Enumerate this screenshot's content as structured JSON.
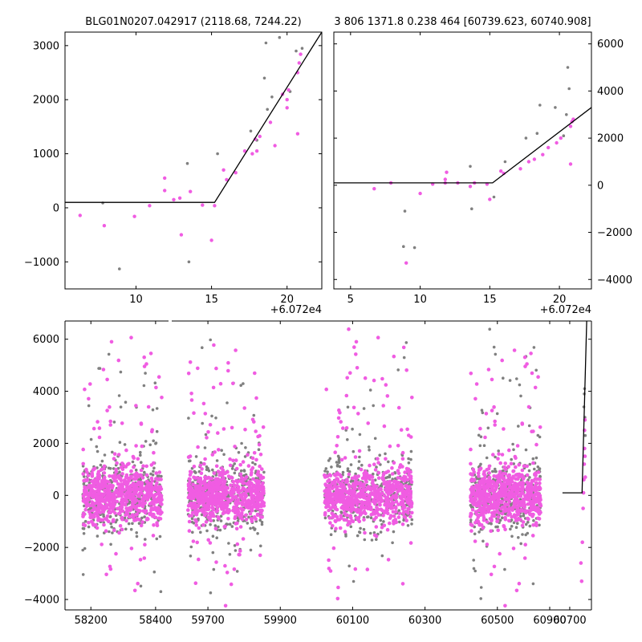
{
  "chart_data": [
    {
      "type": "scatter",
      "title": "BLG01N0207.042917 (2118.68, 7244.22)",
      "xlim": [
        5.3,
        22.3
      ],
      "ylim": [
        -1500,
        3250
      ],
      "x_offset_label": "+6.072e4",
      "x_ticks": [
        10,
        15,
        20
      ],
      "y_ticks": [
        -1000,
        0,
        1000,
        2000,
        3000
      ],
      "y_tick_side": "left",
      "colors": {
        "pink": "#f05ce2",
        "gray": "#808080",
        "line": "#000000"
      },
      "series": [
        {
          "color": "gray",
          "points": [
            [
              7.8,
              90
            ],
            [
              8.9,
              -1130
            ],
            [
              13.4,
              820
            ],
            [
              13.5,
              -1000
            ],
            [
              15.4,
              1000
            ],
            [
              17.6,
              1420
            ],
            [
              18.0,
              1250
            ],
            [
              18.5,
              2400
            ],
            [
              18.7,
              1820
            ],
            [
              19.0,
              2050
            ],
            [
              19.5,
              3150
            ],
            [
              20.2,
              2150
            ],
            [
              20.6,
              2900
            ],
            [
              21.0,
              2950
            ],
            [
              18.6,
              3050
            ]
          ]
        },
        {
          "color": "pink",
          "points": [
            [
              6.3,
              -140
            ],
            [
              7.9,
              -330
            ],
            [
              9.9,
              -160
            ],
            [
              10.9,
              40
            ],
            [
              11.9,
              320
            ],
            [
              11.9,
              550
            ],
            [
              12.5,
              150
            ],
            [
              12.9,
              180
            ],
            [
              13.0,
              -500
            ],
            [
              13.6,
              300
            ],
            [
              14.4,
              50
            ],
            [
              15.0,
              -600
            ],
            [
              15.2,
              40
            ],
            [
              15.8,
              700
            ],
            [
              16.0,
              520
            ],
            [
              17.2,
              1050
            ],
            [
              17.7,
              1000
            ],
            [
              18.0,
              1050
            ],
            [
              18.2,
              1320
            ],
            [
              18.9,
              1580
            ],
            [
              19.2,
              1150
            ],
            [
              19.7,
              2100
            ],
            [
              20.0,
              1850
            ],
            [
              20.0,
              2000
            ],
            [
              20.1,
              2180
            ],
            [
              20.7,
              1370
            ],
            [
              20.7,
              2500
            ],
            [
              20.8,
              2680
            ],
            [
              20.9,
              2840
            ],
            [
              16.6,
              650
            ],
            [
              17.9,
              1270
            ]
          ]
        },
        {
          "color": "line",
          "points": [
            [
              5.3,
              100
            ],
            [
              15.2,
              100
            ],
            [
              22.3,
              3250
            ]
          ]
        }
      ]
    },
    {
      "type": "scatter",
      "title": "3 806 1371.8 0.238 464 [60739.623, 60740.908]",
      "xlim": [
        3.8,
        22.3
      ],
      "ylim": [
        -4400,
        6500
      ],
      "x_offset_label": "+6.072e4",
      "x_ticks": [
        5,
        10,
        15,
        20
      ],
      "y_ticks": [
        -4000,
        -2000,
        0,
        2000,
        4000,
        6000
      ],
      "y_tick_side": "right",
      "colors": {
        "pink": "#f05ce2",
        "gray": "#808080",
        "line": "#000000"
      },
      "series": [
        {
          "color": "gray",
          "points": [
            [
              8.9,
              -1100
            ],
            [
              8.8,
              -2600
            ],
            [
              9.6,
              -2650
            ],
            [
              13.7,
              -1000
            ],
            [
              13.6,
              800
            ],
            [
              15.3,
              -500
            ],
            [
              16.1,
              1000
            ],
            [
              17.6,
              2000
            ],
            [
              18.4,
              2200
            ],
            [
              18.6,
              3400
            ],
            [
              19.7,
              3300
            ],
            [
              20.3,
              2100
            ],
            [
              20.5,
              3000
            ],
            [
              20.7,
              4100
            ],
            [
              20.6,
              5000
            ]
          ]
        },
        {
          "color": "pink",
          "points": [
            [
              6.7,
              -150
            ],
            [
              7.9,
              100
            ],
            [
              9.0,
              -3300
            ],
            [
              10.0,
              -350
            ],
            [
              10.9,
              50
            ],
            [
              11.8,
              100
            ],
            [
              11.8,
              250
            ],
            [
              11.9,
              550
            ],
            [
              12.7,
              100
            ],
            [
              13.6,
              -50
            ],
            [
              13.9,
              100
            ],
            [
              14.8,
              50
            ],
            [
              15.0,
              -600
            ],
            [
              15.8,
              600
            ],
            [
              16.0,
              500
            ],
            [
              17.2,
              700
            ],
            [
              17.8,
              1000
            ],
            [
              18.2,
              1100
            ],
            [
              18.8,
              1300
            ],
            [
              19.2,
              1600
            ],
            [
              19.8,
              1800
            ],
            [
              20.1,
              2000
            ],
            [
              20.8,
              900
            ],
            [
              20.8,
              2500
            ],
            [
              20.9,
              2700
            ],
            [
              21.0,
              2800
            ]
          ]
        },
        {
          "color": "line",
          "points": [
            [
              3.8,
              100
            ],
            [
              15.2,
              100
            ],
            [
              22.3,
              3300
            ]
          ]
        }
      ]
    },
    {
      "type": "scatter",
      "title": "",
      "segments": [
        {
          "xlim": [
            58120,
            58440
          ],
          "x_ticks": [
            58200,
            58400
          ]
        },
        {
          "xlim": [
            59600,
            60760
          ],
          "x_ticks": [
            59700,
            59900,
            60100,
            60300,
            60500,
            60700
          ]
        }
      ],
      "extra_x_tick": 60900,
      "ylim": [
        -4400,
        6700
      ],
      "y_ticks": [
        -4000,
        -2000,
        0,
        2000,
        4000,
        6000
      ],
      "y_tick_side": "left",
      "colors": {
        "pink": "#f05ce2",
        "gray": "#808080",
        "line": "#000000"
      },
      "seasons": [
        [
          58175,
          58420
        ],
        [
          59645,
          59855
        ],
        [
          60022,
          60265
        ],
        [
          60425,
          60620
        ]
      ],
      "model_line": [
        [
          60680,
          100
        ],
        [
          60734,
          100
        ],
        [
          60747,
          6700
        ]
      ],
      "late_points_pink": [
        [
          60731,
          -2600
        ],
        [
          60733,
          -3300
        ],
        [
          60735,
          -1800
        ],
        [
          60737,
          -500
        ],
        [
          60738,
          100
        ],
        [
          60739,
          600
        ],
        [
          60740,
          1200
        ],
        [
          60741,
          1800
        ],
        [
          60741,
          2500
        ],
        [
          60742,
          2900
        ],
        [
          60742,
          1500
        ],
        [
          60743,
          700
        ]
      ],
      "late_points_gray": [
        [
          60739,
          3400
        ],
        [
          60740,
          3900
        ],
        [
          60741,
          4100
        ],
        [
          60742,
          3000
        ],
        [
          60743,
          2300
        ]
      ]
    }
  ]
}
